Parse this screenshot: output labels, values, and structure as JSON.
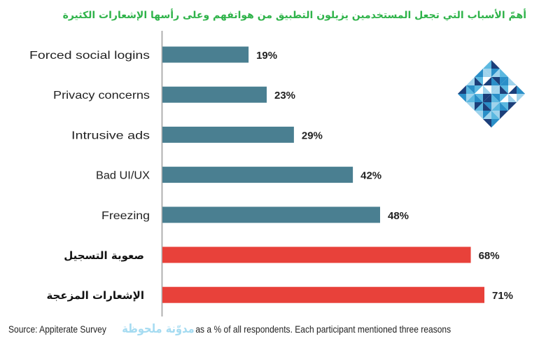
{
  "title": "أهمّ الأسباب التي تجعل المستخدمين يزيلون التطبيق من هواتفهم وعلى رأسها الإشعارات الكثيرة",
  "chart_data": {
    "type": "bar",
    "orientation": "horizontal",
    "categories": [
      "Forced social logins",
      "Privacy concerns",
      "Intrusive ads",
      "Bad UI/UX",
      "Freezing",
      "صعوبة التسجيل",
      "الإشعارات المزعجة"
    ],
    "values": [
      19,
      23,
      29,
      42,
      48,
      68,
      71
    ],
    "value_labels": [
      "19%",
      "23%",
      "29%",
      "42%",
      "48%",
      "68%",
      "71%"
    ],
    "unit": "%",
    "xlim": [
      0,
      80
    ],
    "grid": false,
    "colors": [
      "#4a7f91",
      "#4a7f91",
      "#4a7f91",
      "#4a7f91",
      "#4a7f91",
      "#e8413a",
      "#e8413a"
    ],
    "axis_color": "#b0b0b0"
  },
  "footer": {
    "source": "Source: Appiterate Survey",
    "watermark": "مدوّنة ملحوظة",
    "note": "as a % of all respondents. Each participant  mentioned three reasons"
  },
  "logo": {
    "icon": "blue-diamond-triangle-logo",
    "colors": [
      "#1c3f7a",
      "#2a8fc8",
      "#9fd3ec",
      "#5bb8e0",
      "#ffffff"
    ]
  }
}
